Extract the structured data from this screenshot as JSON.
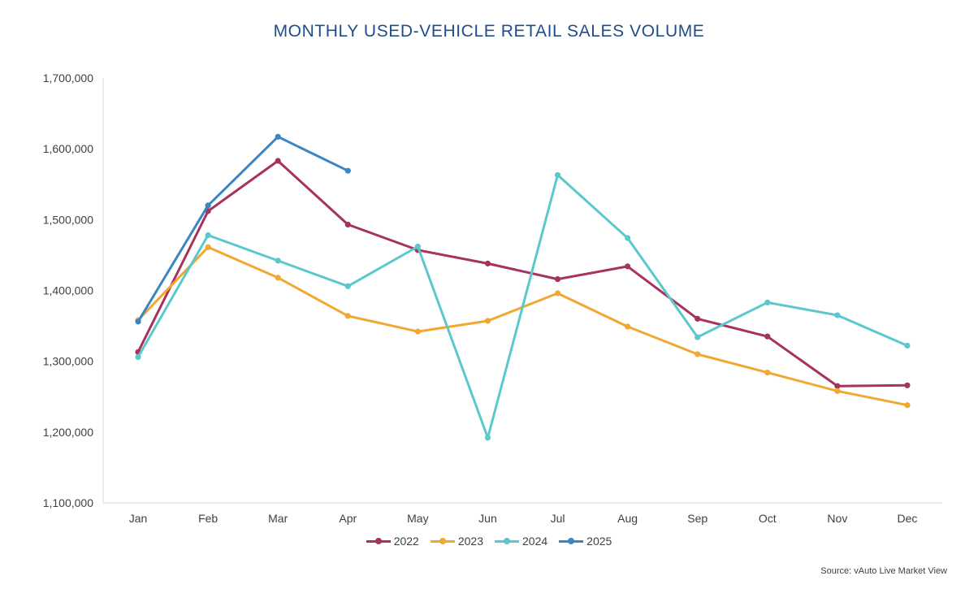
{
  "chart_data": {
    "type": "line",
    "title": "MONTHLY USED-VEHICLE RETAIL SALES VOLUME",
    "xlabel": "",
    "ylabel": "",
    "categories": [
      "Jan",
      "Feb",
      "Mar",
      "Apr",
      "May",
      "Jun",
      "Jul",
      "Aug",
      "Sep",
      "Oct",
      "Nov",
      "Dec"
    ],
    "ylim": [
      1100000,
      1700000
    ],
    "yticks": [
      1100000,
      1200000,
      1300000,
      1400000,
      1500000,
      1600000,
      1700000
    ],
    "ytick_labels": [
      "1,100,000",
      "1,200,000",
      "1,300,000",
      "1,400,000",
      "1,500,000",
      "1,600,000",
      "1,700,000"
    ],
    "grid": false,
    "legend_position": "bottom",
    "series": [
      {
        "name": "2022",
        "color": "#a8325e",
        "values": [
          1313000,
          1512000,
          1583000,
          1493000,
          1457000,
          1438000,
          1416000,
          1434000,
          1360000,
          1335000,
          1265000,
          1266000
        ]
      },
      {
        "name": "2023",
        "color": "#f0a830",
        "values": [
          1358000,
          1461000,
          1418000,
          1364000,
          1342000,
          1357000,
          1396000,
          1349000,
          1310000,
          1284000,
          1258000,
          1238000
        ]
      },
      {
        "name": "2024",
        "color": "#5bc8cc",
        "values": [
          1306000,
          1478000,
          1442000,
          1406000,
          1462000,
          1192000,
          1563000,
          1474000,
          1334000,
          1383000,
          1365000,
          1322000
        ]
      },
      {
        "name": "2025",
        "color": "#3a86c4",
        "values": [
          1356000,
          1520000,
          1617000,
          1569000,
          null,
          null,
          null,
          null,
          null,
          null,
          null,
          null
        ]
      }
    ],
    "source": "Source: vAuto Live Market View"
  }
}
